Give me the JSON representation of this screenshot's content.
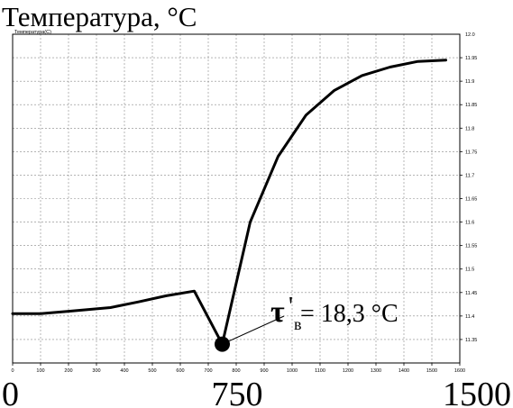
{
  "title": "Температура, °C",
  "inner_label": "Температура(C)",
  "big_x_ticks": [
    "0",
    "750",
    "1500"
  ],
  "annotation": {
    "symbol": "τ",
    "prime": "'",
    "subscript": "в",
    "value_text": "= 18,3 °C"
  },
  "chart_data": {
    "type": "line",
    "title": "Температура, °C",
    "xlabel": "",
    "ylabel": "Температура(C)",
    "xlim": [
      0,
      1600
    ],
    "ylim": [
      11.3,
      12.0
    ],
    "x_ticks": [
      0,
      100,
      200,
      300,
      400,
      500,
      600,
      700,
      800,
      900,
      1000,
      1100,
      1200,
      1300,
      1400,
      1500,
      1600
    ],
    "x_tick_labels": [
      "0",
      "100",
      "200",
      "300",
      "400",
      "500",
      "600",
      "700",
      "800",
      "900",
      "1000",
      "1100",
      "1200",
      "1300",
      "1400",
      "1500",
      "1600"
    ],
    "y_ticks": [
      11.35,
      11.4,
      11.45,
      11.5,
      11.55,
      11.6,
      11.65,
      11.7,
      11.75,
      11.8,
      11.85,
      11.9,
      11.95
    ],
    "y_tick_labels": [
      "11.35",
      "11.4",
      "11.45",
      "11.5",
      "11.55",
      "11.6",
      "11.65",
      "11.7",
      "11.75",
      "11.8",
      "11.85",
      "11.9",
      "11.95"
    ],
    "y_top_label": "12.0",
    "grid": true,
    "series": [
      {
        "x": [
          0,
          100,
          200,
          350,
          450,
          550,
          650,
          750,
          850,
          950,
          1050,
          1150,
          1250,
          1350,
          1450,
          1550
        ],
        "values": [
          11.405,
          11.405,
          11.41,
          11.418,
          11.43,
          11.443,
          11.453,
          11.34,
          11.6,
          11.74,
          11.828,
          11.88,
          11.912,
          11.93,
          11.942,
          11.945
        ]
      }
    ],
    "marker": {
      "x": 750,
      "y": 11.34
    }
  }
}
